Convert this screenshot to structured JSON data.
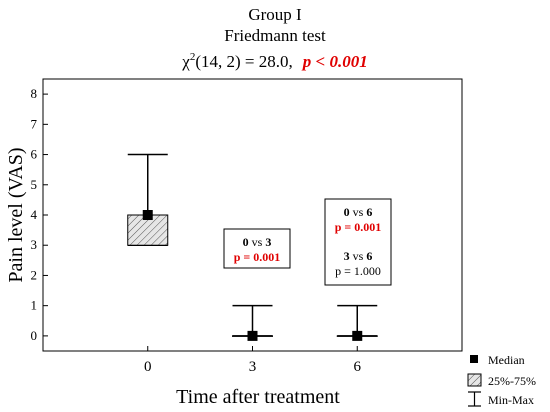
{
  "chart_data": {
    "type": "boxplot",
    "title": "Group I",
    "subtitle": "Friedmann test",
    "stat": {
      "chi_text": "χ",
      "sup": "2",
      "args": "(14, 2) = 28.0,",
      "p_text": "p < 0.001"
    },
    "xlabel": "Time after treatment",
    "ylabel": "Pain level (VAS)",
    "ylim": [
      -0.5,
      8.5
    ],
    "yticks": [
      "0",
      "1",
      "2",
      "3",
      "4",
      "5",
      "6",
      "7",
      "8"
    ],
    "categories": [
      "0",
      "3",
      "6"
    ],
    "boxes": [
      {
        "category": "0",
        "median": 4,
        "q1": 3,
        "q3": 4,
        "min": 3,
        "max": 6
      },
      {
        "category": "3",
        "median": 0,
        "q1": 0,
        "q3": 0,
        "min": 0,
        "max": 1
      },
      {
        "category": "6",
        "median": 0,
        "q1": 0,
        "q3": 0,
        "min": 0,
        "max": 1
      }
    ],
    "comparisons": [
      {
        "a": "0",
        "vs": "vs",
        "b": "3",
        "p": "p = 0.001",
        "significant": true
      },
      {
        "a": "0",
        "vs": "vs",
        "b": "6",
        "p": "p = 0.001",
        "significant": true
      },
      {
        "a": "3",
        "vs": "vs",
        "b": "6",
        "p": "p = 1.000",
        "significant": false
      }
    ],
    "legend": {
      "position": "bottom-right",
      "items": [
        {
          "symbol": "filled-square",
          "label": "Median"
        },
        {
          "symbol": "hatched-box",
          "label": "25%-75%"
        },
        {
          "symbol": "whisker",
          "label": "Min-Max"
        }
      ]
    },
    "colors": {
      "significant": "#e00000",
      "box_fill": "#d8d8d8",
      "ink": "#000000"
    }
  }
}
